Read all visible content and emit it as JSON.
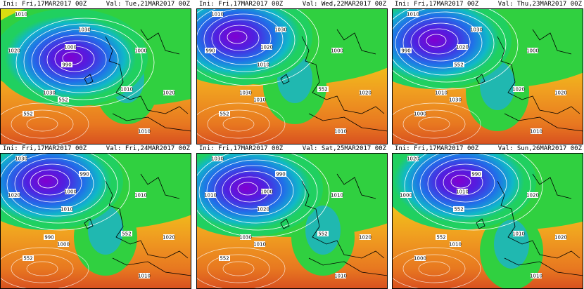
{
  "panels": [
    {
      "init": "Ini: Fri,17MAR2017 00Z",
      "valid": "Val: Tue,21MAR2017 00Z",
      "labels": [
        "1010",
        "1000",
        "1030",
        "1020",
        "990",
        "1000",
        "1010",
        "1030",
        "552",
        "552",
        "1020",
        "1010"
      ]
    },
    {
      "init": "Ini: Fri,17MAR2017 00Z",
      "valid": "Val: Wed,22MAR2017 00Z",
      "labels": [
        "1010",
        "1020",
        "1030",
        "990",
        "1010",
        "1000",
        "552",
        "1030",
        "1010",
        "552",
        "1020",
        "1010"
      ]
    },
    {
      "init": "Ini: Fri,17MAR2017 00Z",
      "valid": "Val: Thu,23MAR2017 00Z",
      "labels": [
        "1010",
        "1020",
        "1030",
        "990",
        "552",
        "1000",
        "1020",
        "1010",
        "1030",
        "1000",
        "1020",
        "1010"
      ]
    },
    {
      "init": "Ini: Fri,17MAR2017 00Z",
      "valid": "Val: Fri,24MAR2017 00Z",
      "labels": [
        "1030",
        "1000",
        "990",
        "1020",
        "1010",
        "1010",
        "552",
        "990",
        "1000",
        "552",
        "1020",
        "1010"
      ]
    },
    {
      "init": "Ini: Fri,17MAR2017 00Z",
      "valid": "Val: Sat,25MAR2017 00Z",
      "labels": [
        "1030",
        "1000",
        "990",
        "1010",
        "1020",
        "1010",
        "552",
        "1030",
        "1010",
        "552",
        "1020",
        "1010"
      ]
    },
    {
      "init": "Ini: Fri,17MAR2017 00Z",
      "valid": "Val: Sun,26MAR2017 00Z",
      "labels": [
        "1020",
        "1010",
        "990",
        "1000",
        "552",
        "1020",
        "1010",
        "552",
        "1010",
        "1000",
        "1020",
        "1010"
      ]
    }
  ]
}
